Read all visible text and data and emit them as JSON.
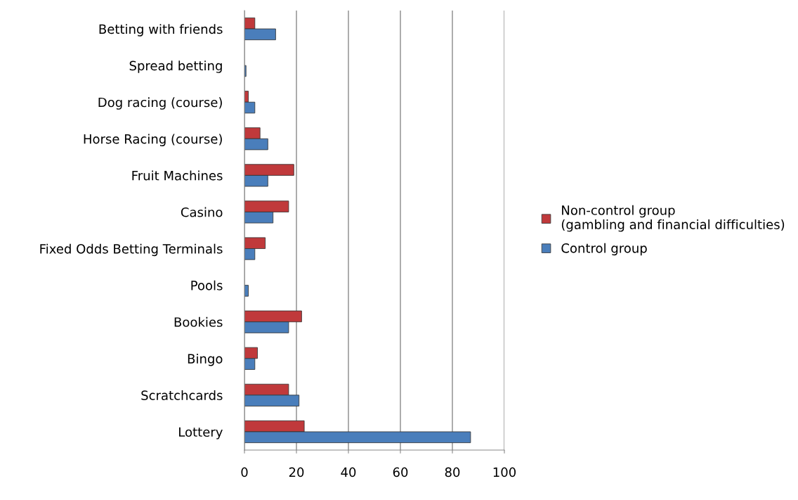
{
  "chart_data": {
    "type": "bar",
    "orientation": "horizontal",
    "categories": [
      "Betting with friends",
      "Spread betting",
      "Dog racing (course)",
      "Horse Racing (course)",
      "Fruit Machines",
      "Casino",
      "Fixed Odds Betting Terminals",
      "Pools",
      "Bookies",
      "Bingo",
      "Scratchcards",
      "Lottery"
    ],
    "series": [
      {
        "name": "Non-control group (gambling and financial difficulties)",
        "color": "#c0393b",
        "values": [
          4,
          null,
          1.5,
          6,
          19,
          17,
          8,
          null,
          22,
          5,
          17,
          23
        ]
      },
      {
        "name": "Control group",
        "color": "#4a7ebb",
        "values": [
          12,
          0.6,
          4,
          9,
          9,
          11,
          4,
          1.5,
          17,
          4,
          21,
          87
        ]
      }
    ],
    "xlim": [
      0,
      100
    ],
    "xticks": [
      0,
      20,
      40,
      60,
      80,
      100
    ],
    "grid": "x",
    "legend": "right"
  }
}
